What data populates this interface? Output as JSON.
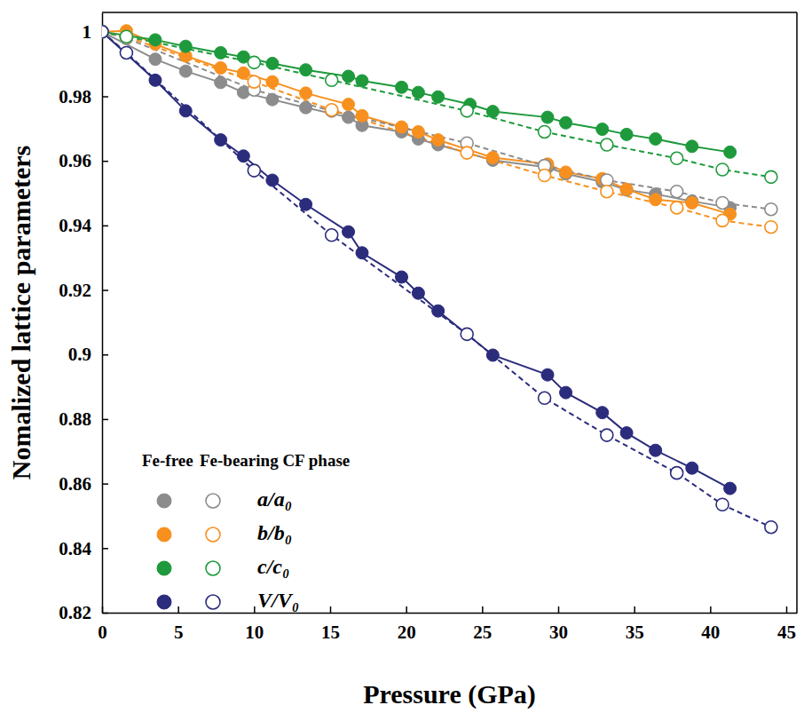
{
  "chart_data": {
    "type": "scatter",
    "x_label": "Pressure (GPa)",
    "y_label": "Nomalized lattice parameters",
    "xlim": [
      0,
      45.7
    ],
    "xticks": [
      0,
      5,
      10,
      15,
      20,
      25,
      30,
      35,
      40,
      45
    ],
    "ylim": [
      0.82,
      1.006
    ],
    "yticks": [
      0.82,
      0.84,
      0.86,
      0.88,
      0.9,
      0.92,
      0.94,
      0.96,
      0.98,
      1
    ],
    "grid": false,
    "legend": "lower left",
    "legend_columns": [
      "Fe-free",
      "Fe-bearing CF phase"
    ],
    "series": [
      {
        "name": "a/a₀",
        "group": "Fe-free",
        "color": "#8c8c8c",
        "marker": "filled",
        "line_style": "solid",
        "x": [
          0,
          3.5,
          5.5,
          7.8,
          9.3,
          11.2,
          13.4,
          16.2,
          17.1,
          19.7,
          20.8,
          22.1,
          25.7,
          29.3,
          30.5,
          32.9,
          34.5,
          36.4,
          38.8,
          41.3
        ],
        "values": [
          1,
          0.9915,
          0.9878,
          0.9843,
          0.9812,
          0.979,
          0.9765,
          0.9735,
          0.971,
          0.969,
          0.9668,
          0.965,
          0.9602,
          0.958,
          0.956,
          0.9535,
          0.951,
          0.9497,
          0.9475,
          0.9455
        ]
      },
      {
        "name": "b/b₀",
        "group": "Fe-free",
        "color": "#f7901e",
        "marker": "filled",
        "line_style": "solid",
        "x": [
          0,
          1.6,
          3.5,
          5.5,
          7.8,
          9.3,
          11.2,
          13.4,
          16.2,
          17.1,
          19.7,
          20.8,
          22.1,
          25.7,
          29.3,
          30.5,
          32.9,
          34.5,
          36.4,
          38.8,
          41.3
        ],
        "values": [
          1,
          1.0003,
          0.9962,
          0.9925,
          0.9888,
          0.9872,
          0.9845,
          0.981,
          0.9775,
          0.974,
          0.9705,
          0.969,
          0.9665,
          0.961,
          0.959,
          0.9565,
          0.9545,
          0.9512,
          0.948,
          0.947,
          0.9435
        ]
      },
      {
        "name": "c/c₀",
        "group": "Fe-free",
        "color": "#1e9a3c",
        "marker": "filled",
        "line_style": "solid",
        "x": [
          0,
          3.5,
          5.5,
          7.8,
          9.3,
          11.2,
          13.4,
          16.2,
          17.1,
          19.7,
          20.8,
          22.1,
          24.2,
          25.7,
          29.3,
          30.5,
          32.9,
          34.5,
          36.4,
          38.8,
          41.3
        ],
        "values": [
          1,
          0.9975,
          0.9955,
          0.9935,
          0.9922,
          0.9902,
          0.9882,
          0.9862,
          0.9848,
          0.9828,
          0.9812,
          0.9798,
          0.9775,
          0.9753,
          0.9735,
          0.9718,
          0.9698,
          0.9682,
          0.9668,
          0.9645,
          0.9627
        ]
      },
      {
        "name": "V/V₀",
        "group": "Fe-free",
        "color": "#2b2c7c",
        "marker": "filled",
        "line_style": "solid",
        "x": [
          0,
          3.5,
          5.5,
          7.8,
          9.3,
          11.2,
          13.4,
          16.2,
          17.1,
          19.7,
          20.8,
          22.1,
          25.7,
          29.3,
          30.5,
          32.9,
          34.5,
          36.4,
          38.8,
          41.3
        ],
        "values": [
          1,
          0.985,
          0.9755,
          0.9665,
          0.9615,
          0.954,
          0.9465,
          0.938,
          0.9315,
          0.924,
          0.919,
          0.9135,
          0.8998,
          0.8937,
          0.8882,
          0.882,
          0.8757,
          0.8703,
          0.8648,
          0.8585
        ]
      },
      {
        "name": "a/a₀",
        "group": "Fe-bearing CF phase",
        "color": "#8c8c8c",
        "marker": "open",
        "line_style": "dashed",
        "x": [
          0,
          1.6,
          10,
          15.1,
          24,
          29.1,
          33.2,
          37.8,
          40.8,
          44
        ],
        "values": [
          1,
          0.998,
          0.982,
          0.9755,
          0.9655,
          0.9585,
          0.954,
          0.9505,
          0.947,
          0.945
        ]
      },
      {
        "name": "b/b₀",
        "group": "Fe-bearing CF phase",
        "color": "#f7901e",
        "marker": "open",
        "line_style": "dashed",
        "x": [
          0,
          1.6,
          10,
          15.1,
          24,
          29.1,
          33.2,
          37.8,
          40.8,
          44
        ],
        "values": [
          1,
          0.9985,
          0.9845,
          0.9758,
          0.9625,
          0.9555,
          0.9505,
          0.9455,
          0.9415,
          0.9395
        ]
      },
      {
        "name": "c/c₀",
        "group": "Fe-bearing CF phase",
        "color": "#1e9a3c",
        "marker": "open",
        "line_style": "dashed",
        "x": [
          0,
          1.6,
          10,
          15.1,
          24,
          29.1,
          33.2,
          37.8,
          40.8,
          44
        ],
        "values": [
          1,
          0.9985,
          0.9905,
          0.985,
          0.9755,
          0.969,
          0.965,
          0.9608,
          0.9573,
          0.955
        ]
      },
      {
        "name": "V/V₀",
        "group": "Fe-bearing CF phase",
        "color": "#2b2c7c",
        "marker": "open",
        "line_style": "dashed",
        "x": [
          0,
          1.6,
          10,
          15.1,
          24,
          29.1,
          33.2,
          37.8,
          40.8,
          44
        ],
        "values": [
          1,
          0.9935,
          0.957,
          0.937,
          0.9063,
          0.8865,
          0.875,
          0.8633,
          0.8535,
          0.8465
        ]
      }
    ]
  }
}
